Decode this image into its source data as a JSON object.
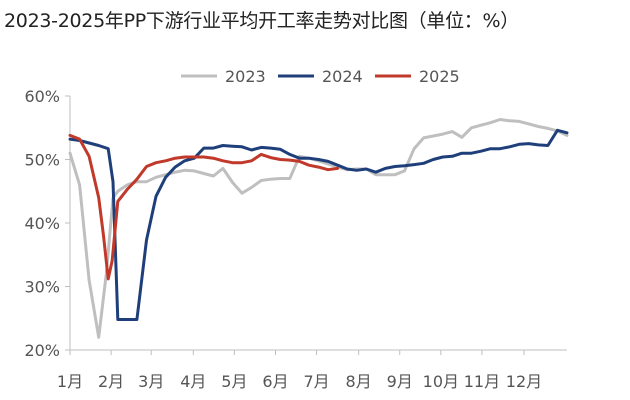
{
  "chart_data": {
    "type": "line",
    "title": "2023-2025年PP下游行业平均开工率走势对比图（单位：%）",
    "xlabel": "",
    "ylabel": "",
    "ylim": [
      20,
      60
    ],
    "yticks": [
      "20%",
      "30%",
      "40%",
      "50%",
      "60%"
    ],
    "xlim": [
      0,
      52
    ],
    "x_tick_labels": [
      "1月",
      "2月",
      "3月",
      "4月",
      "5月",
      "6月",
      "7月",
      "8月",
      "9月",
      "10月",
      "11月",
      "12月"
    ],
    "x_tick_positions": [
      0,
      4.3,
      8.5,
      12.9,
      17.2,
      21.5,
      25.8,
      30.2,
      34.5,
      38.8,
      43.1,
      47.5
    ],
    "grid": false,
    "legend": "top-center",
    "series": [
      {
        "name": "2023",
        "color": "#bfbfbf",
        "x": [
          0,
          1,
          2,
          3,
          3.8,
          4.5,
          5,
          6,
          7,
          8,
          9,
          10,
          11,
          12,
          13,
          14,
          15,
          16,
          17,
          18,
          19,
          20,
          21,
          22,
          23,
          24,
          25,
          26,
          27,
          28,
          29,
          30,
          31,
          32,
          33,
          34,
          35,
          36,
          37,
          38,
          39,
          40,
          41,
          42,
          43,
          44,
          45,
          46,
          47,
          48,
          49,
          50,
          51,
          52
        ],
        "values": [
          51,
          46,
          31,
          22,
          32,
          44,
          45,
          46,
          46.5,
          46.5,
          47.2,
          47.6,
          48,
          48.3,
          48.2,
          47.8,
          47.4,
          48.6,
          46.4,
          44.7,
          45.6,
          46.7,
          46.9,
          47,
          47,
          50.5,
          50.2,
          49.8,
          49.3,
          48.8,
          48.4,
          48.5,
          48.5,
          47.6,
          47.6,
          47.6,
          48.2,
          51.7,
          53.4,
          53.7,
          54,
          54.4,
          53.5,
          55,
          55.4,
          55.8,
          56.3,
          56.1,
          56,
          55.6,
          55.2,
          54.9,
          54.5,
          53.8
        ]
      },
      {
        "name": "2024",
        "color": "#1f3f7a",
        "x": [
          0,
          1,
          2,
          3,
          4,
          4.5,
          5,
          6,
          7,
          8,
          9,
          10,
          11,
          12,
          13,
          14,
          15,
          16,
          17,
          18,
          19,
          20,
          21,
          22,
          23,
          24,
          25,
          26,
          27,
          28,
          29,
          30,
          31,
          32,
          33,
          34,
          35,
          36,
          37,
          38,
          39,
          40,
          41,
          42,
          43,
          44,
          45,
          46,
          47,
          48,
          49,
          50,
          51,
          52
        ],
        "values": [
          53.2,
          53,
          52.6,
          52.2,
          51.7,
          46.5,
          24.8,
          24.8,
          24.8,
          37.3,
          44.2,
          47.2,
          48.8,
          49.8,
          50.2,
          51.8,
          51.8,
          52.2,
          52.1,
          52,
          51.5,
          51.9,
          51.8,
          51.6,
          50.8,
          50.2,
          50.2,
          50,
          49.7,
          49.1,
          48.5,
          48.3,
          48.5,
          48,
          48.6,
          48.9,
          49,
          49.2,
          49.4,
          50,
          50.4,
          50.5,
          51,
          51,
          51.3,
          51.7,
          51.7,
          52,
          52.4,
          52.5,
          52.3,
          52.2,
          54.6,
          54.2
        ]
      },
      {
        "name": "2025",
        "color": "#c0392b",
        "x": [
          0,
          1,
          2,
          3,
          3.5,
          4,
          4.4,
          5,
          6,
          7,
          8,
          9,
          10,
          11,
          12,
          13,
          14,
          15,
          16,
          17,
          18,
          19,
          20,
          21,
          22,
          23,
          24,
          25,
          26,
          27,
          28
        ],
        "values": [
          53.8,
          53.2,
          50.5,
          44,
          38,
          31.2,
          34,
          43.4,
          45.3,
          46.9,
          48.9,
          49.5,
          49.8,
          50.2,
          50.4,
          50.4,
          50.4,
          50.2,
          49.8,
          49.5,
          49.5,
          49.8,
          50.8,
          50.3,
          50,
          49.9,
          49.7,
          49.1,
          48.8,
          48.4,
          48.6
        ]
      }
    ]
  }
}
